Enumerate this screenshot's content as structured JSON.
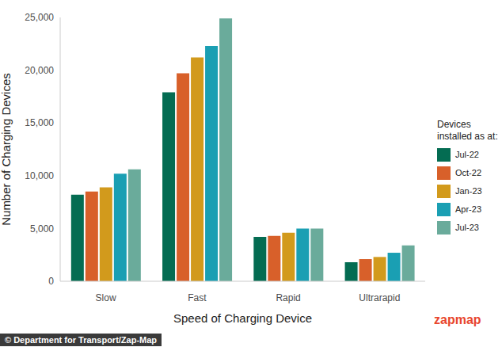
{
  "chart_data": {
    "type": "bar",
    "x_label": "Speed of Charging Device",
    "y_label": "Number of Charging Devices",
    "legend_title": [
      "Devices",
      "installed as at:"
    ],
    "source": "© Department for Transport/Zap-Map",
    "logo": "zapmap",
    "categories": [
      "Slow",
      "Fast",
      "Rapid",
      "Ultrarapid"
    ],
    "series": [
      {
        "name": "Jul-22",
        "color": "#046c52",
        "values": [
          8200,
          17900,
          4200,
          1800
        ]
      },
      {
        "name": "Oct-22",
        "color": "#d8602a",
        "values": [
          8500,
          19700,
          4300,
          2100
        ]
      },
      {
        "name": "Jan-23",
        "color": "#d29a1c",
        "values": [
          8900,
          21200,
          4600,
          2300
        ]
      },
      {
        "name": "Apr-23",
        "color": "#1a9fb3",
        "values": [
          10200,
          22300,
          5000,
          2700
        ]
      },
      {
        "name": "Jul-23",
        "color": "#6aab9b",
        "values": [
          10600,
          24900,
          5000,
          3400
        ]
      }
    ],
    "ylim": [
      0,
      25000
    ],
    "yticks": [
      0,
      {
        "value": 5000,
        "label": "5,000"
      },
      {
        "value": 10000,
        "label": "10,000"
      },
      {
        "value": 15000,
        "label": "15,000"
      },
      {
        "value": 20000,
        "label": "20,000"
      },
      {
        "value": 25000,
        "label": "25,000"
      }
    ],
    "grid": false,
    "legend": "right"
  }
}
